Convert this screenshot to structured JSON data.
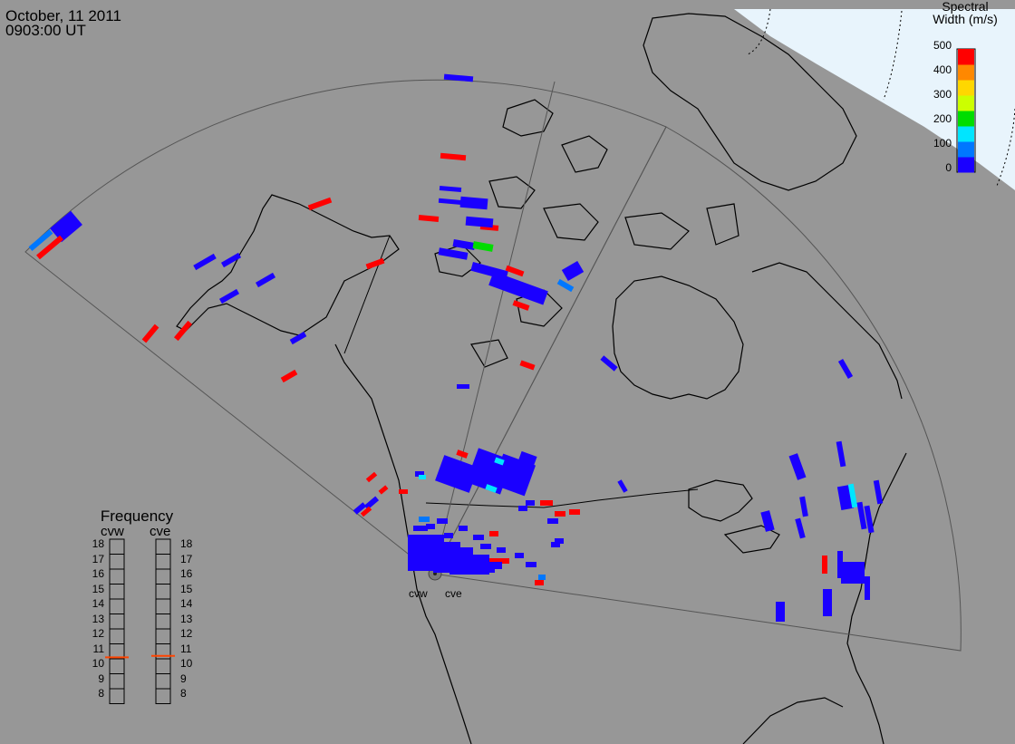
{
  "header": {
    "date": "October, 11 2011",
    "time": "0903:00 UT"
  },
  "legend": {
    "title_line1": "Spectral",
    "title_line2": "Width (m/s)",
    "ticks": [
      "500",
      "400",
      "300",
      "200",
      "100",
      "0"
    ],
    "colors": [
      "#1a00ff",
      "#0077ff",
      "#00e5ff",
      "#00dd00",
      "#ccff00",
      "#ffd700",
      "#ff8800",
      "#ff0000"
    ]
  },
  "frequency_panel": {
    "title": "Frequency",
    "radars": [
      {
        "code": "cvw",
        "current_mhz": 10.6
      },
      {
        "code": "cve",
        "current_mhz": 10.7
      }
    ],
    "ticks": [
      "18",
      "17",
      "16",
      "15",
      "14",
      "13",
      "12",
      "11",
      "10",
      "9",
      "8"
    ],
    "marker_color": "#ff4400"
  },
  "radar_sites": [
    {
      "code": "cvw"
    },
    {
      "code": "cve"
    }
  ],
  "colors": {
    "background": "#979797",
    "daylight_region": "#e8f4fc",
    "low_width": "#1a00ff",
    "high_width": "#ff0000",
    "medium_width": "#00e5ff"
  }
}
